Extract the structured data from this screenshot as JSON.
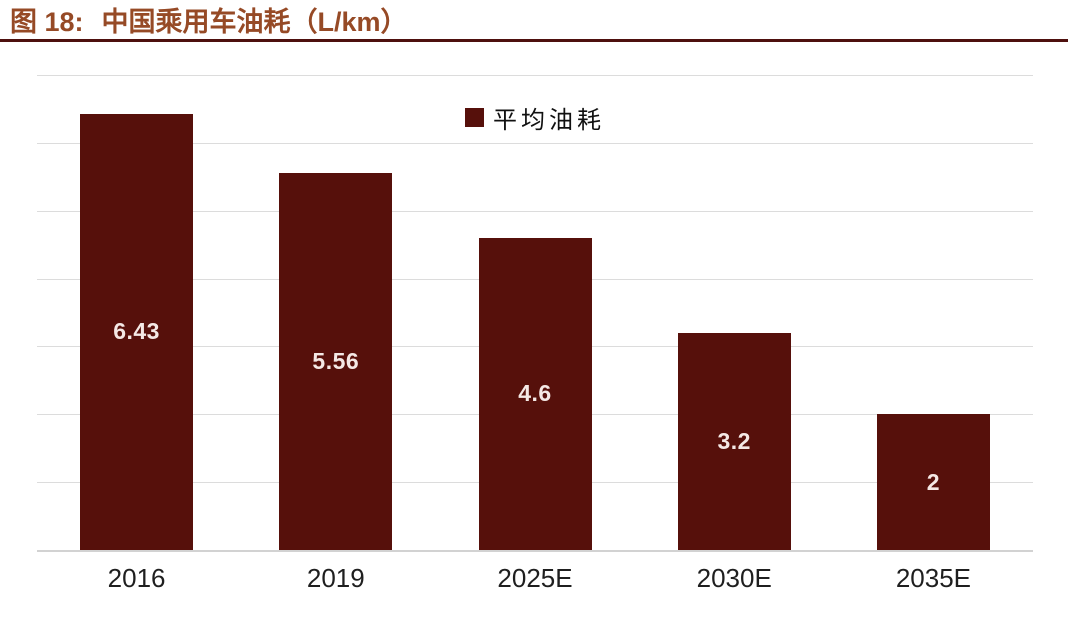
{
  "header": {
    "label": "图 18:",
    "title": "中国乘用车油耗（L/km）"
  },
  "chart_data": {
    "type": "bar",
    "title": "中国乘用车油耗（L/km）",
    "categories": [
      "2016",
      "2019",
      "2025E",
      "2030E",
      "2035E"
    ],
    "values": [
      6.43,
      5.56,
      4.6,
      3.2,
      2
    ],
    "value_labels": [
      "6.43",
      "5.56",
      "4.6",
      "3.2",
      "2"
    ],
    "series_name": "平均油耗",
    "legend": [
      "平均油耗"
    ],
    "legend_position": "top-center-inside-plot",
    "xlabel": "",
    "ylabel": "",
    "ylim": [
      0,
      7
    ],
    "gridline_step": 1,
    "grid": true,
    "y_tick_labels_visible": false,
    "value_label_position": "center-inside-bar"
  },
  "colors": {
    "bar": "#56100B",
    "title": "#964A26",
    "rule": "#4E100E",
    "gridline": "#DCDCDC",
    "axis_line": "#D2D2D2",
    "value_label": "#F4E8E5",
    "tick_label": "#1F1F1F",
    "legend_text": "#111111",
    "background": "#FFFFFF"
  }
}
